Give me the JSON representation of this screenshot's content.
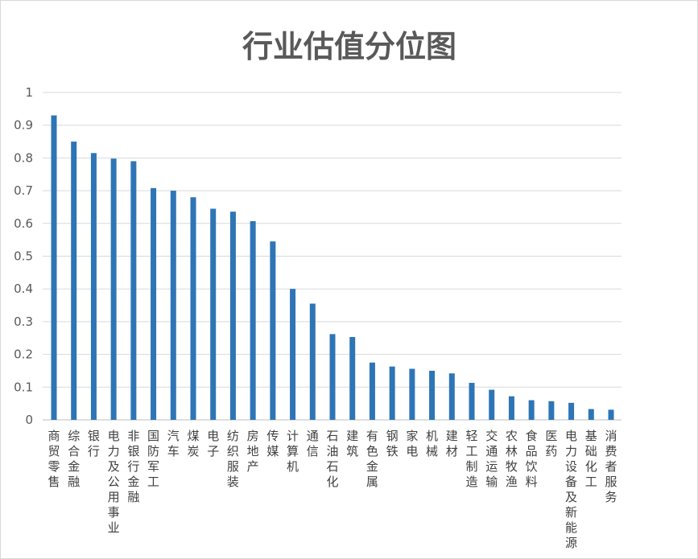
{
  "chart_data": {
    "type": "bar",
    "title": "行业估值分位图",
    "xlabel": "",
    "ylabel": "",
    "ylim": [
      0,
      1
    ],
    "yticks": [
      "0",
      "0.1",
      "0.2",
      "0.3",
      "0.4",
      "0.5",
      "0.6",
      "0.7",
      "0.8",
      "0.9",
      "1"
    ],
    "grid": true,
    "legend": "none",
    "bar_color": "#2e75b6",
    "categories": [
      "商贸零售",
      "综合金融",
      "银行",
      "电力及公用事业",
      "非银行金融",
      "国防军工",
      "汽车",
      "煤炭",
      "电子",
      "纺织服装",
      "房地产",
      "传媒",
      "计算机",
      "通信",
      "石油石化",
      "建筑",
      "有色金属",
      "钢铁",
      "家电",
      "机械",
      "建材",
      "轻工制造",
      "交通运输",
      "农林牧渔",
      "食品饮料",
      "医药",
      "电力设备及新能源",
      "基础化工",
      "消费者服务"
    ],
    "values": [
      0.93,
      0.85,
      0.815,
      0.798,
      0.79,
      0.708,
      0.7,
      0.68,
      0.645,
      0.636,
      0.607,
      0.545,
      0.4,
      0.355,
      0.262,
      0.253,
      0.175,
      0.163,
      0.156,
      0.15,
      0.142,
      0.113,
      0.092,
      0.072,
      0.06,
      0.057,
      0.052,
      0.033,
      0.031
    ]
  }
}
